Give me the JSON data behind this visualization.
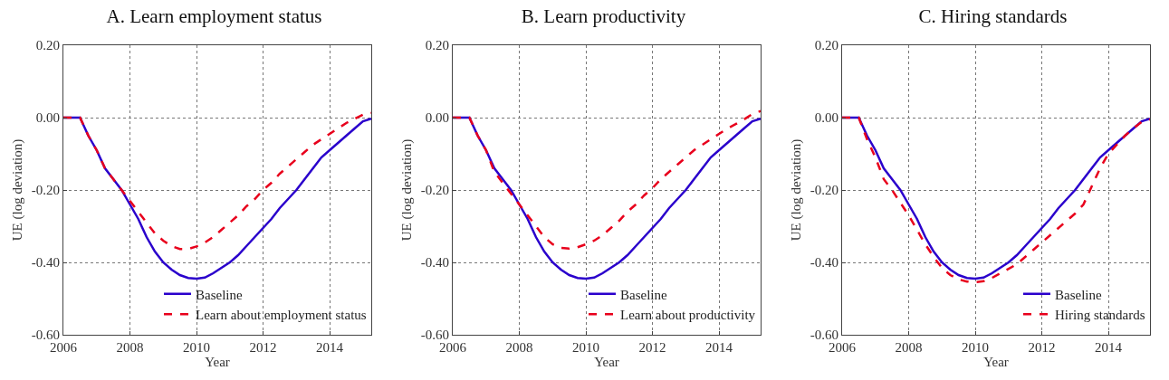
{
  "chart_data": [
    {
      "type": "line",
      "title": "A. Learn employment status",
      "xlabel": "Year",
      "ylabel": "UE (log deviation)",
      "xlim": [
        2006,
        2015.25
      ],
      "ylim": [
        -0.6,
        0.2
      ],
      "xticks": [
        2006,
        2008,
        2010,
        2012,
        2014
      ],
      "yticks": [
        {
          "value": -0.6,
          "label": "-0.60"
        },
        {
          "value": -0.4,
          "label": "-0.40"
        },
        {
          "value": -0.2,
          "label": "-0.20"
        },
        {
          "value": 0,
          "label": "0.00"
        },
        {
          "value": 0.2,
          "label": "0.20"
        }
      ],
      "grid": true,
      "legend": "bottom right",
      "x": [
        2006,
        2006.5,
        2006.75,
        2007,
        2007.25,
        2007.5,
        2007.75,
        2008,
        2008.25,
        2008.5,
        2008.75,
        2009,
        2009.25,
        2009.5,
        2009.75,
        2010,
        2010.25,
        2010.5,
        2010.75,
        2011,
        2011.25,
        2011.5,
        2011.75,
        2012,
        2012.25,
        2012.5,
        2012.75,
        2013,
        2013.25,
        2013.5,
        2013.75,
        2014,
        2014.25,
        2014.5,
        2014.75,
        2015,
        2015.25
      ],
      "series": [
        {
          "name": "Baseline",
          "color": "#2a00cc",
          "line_style": "solid",
          "values": [
            0,
            0,
            -0.05,
            -0.09,
            -0.14,
            -0.17,
            -0.2,
            -0.24,
            -0.28,
            -0.33,
            -0.37,
            -0.4,
            -0.42,
            -0.435,
            -0.443,
            -0.445,
            -0.442,
            -0.43,
            -0.415,
            -0.4,
            -0.38,
            -0.355,
            -0.33,
            -0.305,
            -0.28,
            -0.25,
            -0.225,
            -0.2,
            -0.17,
            -0.14,
            -0.11,
            -0.09,
            -0.07,
            -0.05,
            -0.03,
            -0.01,
            -0.003
          ]
        },
        {
          "name": "Learn about employment status",
          "color": "#e8001c",
          "line_style": "dashed",
          "values": [
            0,
            0,
            -0.05,
            -0.09,
            -0.14,
            -0.17,
            -0.2,
            -0.23,
            -0.26,
            -0.29,
            -0.32,
            -0.34,
            -0.355,
            -0.363,
            -0.363,
            -0.356,
            -0.345,
            -0.33,
            -0.31,
            -0.29,
            -0.27,
            -0.245,
            -0.225,
            -0.2,
            -0.18,
            -0.155,
            -0.135,
            -0.115,
            -0.095,
            -0.075,
            -0.06,
            -0.045,
            -0.03,
            -0.015,
            -0.003,
            0.008,
            0.013
          ]
        }
      ]
    },
    {
      "type": "line",
      "title": "B. Learn productivity",
      "xlabel": "Year",
      "ylabel": "UE (log deviation)",
      "xlim": [
        2006,
        2015.25
      ],
      "ylim": [
        -0.6,
        0.2
      ],
      "xticks": [
        2006,
        2008,
        2010,
        2012,
        2014
      ],
      "yticks": [
        {
          "value": -0.6,
          "label": "-0.60"
        },
        {
          "value": -0.4,
          "label": "-0.40"
        },
        {
          "value": -0.2,
          "label": "-0.20"
        },
        {
          "value": 0,
          "label": "0.00"
        },
        {
          "value": 0.2,
          "label": "0.20"
        }
      ],
      "grid": true,
      "legend": "bottom right",
      "x": [
        2006,
        2006.5,
        2006.75,
        2007,
        2007.25,
        2007.5,
        2007.75,
        2008,
        2008.25,
        2008.5,
        2008.75,
        2009,
        2009.25,
        2009.5,
        2009.75,
        2010,
        2010.25,
        2010.5,
        2010.75,
        2011,
        2011.25,
        2011.5,
        2011.75,
        2012,
        2012.25,
        2012.5,
        2012.75,
        2013,
        2013.25,
        2013.5,
        2013.75,
        2014,
        2014.25,
        2014.5,
        2014.75,
        2015,
        2015.25
      ],
      "series": [
        {
          "name": "Baseline",
          "color": "#2a00cc",
          "line_style": "solid",
          "values": [
            0,
            0,
            -0.05,
            -0.09,
            -0.14,
            -0.17,
            -0.2,
            -0.24,
            -0.28,
            -0.33,
            -0.37,
            -0.4,
            -0.42,
            -0.435,
            -0.443,
            -0.445,
            -0.442,
            -0.43,
            -0.415,
            -0.4,
            -0.38,
            -0.355,
            -0.33,
            -0.305,
            -0.28,
            -0.25,
            -0.225,
            -0.2,
            -0.17,
            -0.14,
            -0.11,
            -0.09,
            -0.07,
            -0.05,
            -0.03,
            -0.01,
            -0.003
          ]
        },
        {
          "name": "Learn about productivity",
          "color": "#e8001c",
          "line_style": "dashed",
          "values": [
            0,
            0,
            -0.05,
            -0.09,
            -0.15,
            -0.18,
            -0.21,
            -0.24,
            -0.27,
            -0.3,
            -0.33,
            -0.35,
            -0.36,
            -0.362,
            -0.358,
            -0.35,
            -0.34,
            -0.325,
            -0.305,
            -0.285,
            -0.26,
            -0.24,
            -0.215,
            -0.195,
            -0.17,
            -0.15,
            -0.13,
            -0.11,
            -0.09,
            -0.075,
            -0.06,
            -0.045,
            -0.03,
            -0.018,
            -0.005,
            0.01,
            0.018
          ]
        }
      ]
    },
    {
      "type": "line",
      "title": "C. Hiring standards",
      "xlabel": "Year",
      "ylabel": "UE (log deviation)",
      "xlim": [
        2006,
        2015.25
      ],
      "ylim": [
        -0.6,
        0.2
      ],
      "xticks": [
        2006,
        2008,
        2010,
        2012,
        2014
      ],
      "yticks": [
        {
          "value": -0.6,
          "label": "-0.60"
        },
        {
          "value": -0.4,
          "label": "-0.40"
        },
        {
          "value": -0.2,
          "label": "-0.20"
        },
        {
          "value": 0,
          "label": "0.00"
        },
        {
          "value": 0.2,
          "label": "0.20"
        }
      ],
      "grid": true,
      "legend": "bottom right",
      "x": [
        2006,
        2006.5,
        2006.75,
        2007,
        2007.25,
        2007.5,
        2007.75,
        2008,
        2008.25,
        2008.5,
        2008.75,
        2009,
        2009.25,
        2009.5,
        2009.75,
        2010,
        2010.25,
        2010.5,
        2010.75,
        2011,
        2011.25,
        2011.5,
        2011.75,
        2012,
        2012.25,
        2012.5,
        2012.75,
        2013,
        2013.25,
        2013.5,
        2013.75,
        2014,
        2014.25,
        2014.5,
        2014.75,
        2015,
        2015.25
      ],
      "series": [
        {
          "name": "Baseline",
          "color": "#2a00cc",
          "line_style": "solid",
          "values": [
            0,
            0,
            -0.05,
            -0.09,
            -0.14,
            -0.17,
            -0.2,
            -0.24,
            -0.28,
            -0.33,
            -0.37,
            -0.4,
            -0.42,
            -0.435,
            -0.443,
            -0.445,
            -0.442,
            -0.43,
            -0.415,
            -0.4,
            -0.38,
            -0.355,
            -0.33,
            -0.305,
            -0.28,
            -0.25,
            -0.225,
            -0.2,
            -0.17,
            -0.14,
            -0.11,
            -0.09,
            -0.07,
            -0.05,
            -0.03,
            -0.01,
            -0.003
          ]
        },
        {
          "name": "Hiring standards",
          "color": "#e8001c",
          "line_style": "dashed",
          "values": [
            0,
            0,
            -0.06,
            -0.11,
            -0.17,
            -0.2,
            -0.235,
            -0.27,
            -0.31,
            -0.35,
            -0.385,
            -0.415,
            -0.435,
            -0.447,
            -0.453,
            -0.455,
            -0.452,
            -0.443,
            -0.43,
            -0.418,
            -0.405,
            -0.385,
            -0.365,
            -0.345,
            -0.325,
            -0.305,
            -0.285,
            -0.265,
            -0.24,
            -0.19,
            -0.14,
            -0.1,
            -0.075,
            -0.05,
            -0.03,
            -0.012,
            -0.005
          ]
        }
      ]
    }
  ]
}
